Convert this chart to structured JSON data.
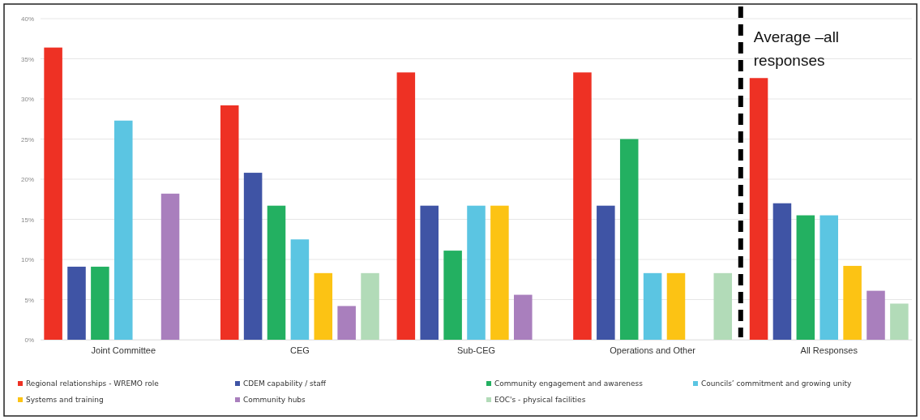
{
  "chart_data": {
    "type": "bar",
    "categories": [
      "Joint Committee",
      "CEG",
      "Sub-CEG",
      "Operations and Other",
      "All Responses"
    ],
    "series": [
      {
        "name": "Regional relationships - WREMO role",
        "color": "#ee3124",
        "values": [
          36.4,
          29.2,
          33.3,
          33.3,
          32.6
        ]
      },
      {
        "name": "CDEM capability / staff",
        "color": "#3f54a5",
        "values": [
          9.1,
          20.8,
          16.7,
          16.7,
          17.0
        ]
      },
      {
        "name": "Community engagement and awareness",
        "color": "#23b061",
        "values": [
          9.1,
          16.7,
          11.1,
          25.0,
          15.5
        ]
      },
      {
        "name": "Councils’ commitment and growing unity",
        "color": "#5bc5e2",
        "values": [
          27.3,
          12.5,
          16.7,
          8.3,
          15.5
        ]
      },
      {
        "name": "Systems and training",
        "color": "#fcc314",
        "values": [
          null,
          8.3,
          16.7,
          8.3,
          9.2
        ]
      },
      {
        "name": "Community hubs",
        "color": "#a97fbd",
        "values": [
          18.2,
          4.2,
          5.6,
          null,
          6.1
        ]
      },
      {
        "name": "EOC's - physical facilities",
        "color": "#b2dbb8",
        "values": [
          null,
          8.3,
          null,
          8.3,
          4.5
        ]
      }
    ],
    "ylim": [
      0,
      40
    ],
    "yticks": [
      {
        "value": 0,
        "label": "0%"
      },
      {
        "value": 5,
        "label": "5%"
      },
      {
        "value": 10,
        "label": "10%"
      },
      {
        "value": 15,
        "label": "15%"
      },
      {
        "value": 20,
        "label": "20%"
      },
      {
        "value": 25,
        "label": "25%"
      },
      {
        "value": 30,
        "label": "30%"
      },
      {
        "value": 35,
        "label": "35%"
      },
      {
        "value": 40,
        "label": "40%"
      }
    ],
    "grid": "y",
    "legend": "bottom",
    "ref_lines": [
      {
        "axis": "x",
        "value": "All Responses",
        "label": "Average –all responses",
        "color": "#000000",
        "line_style": "dashed"
      }
    ]
  }
}
